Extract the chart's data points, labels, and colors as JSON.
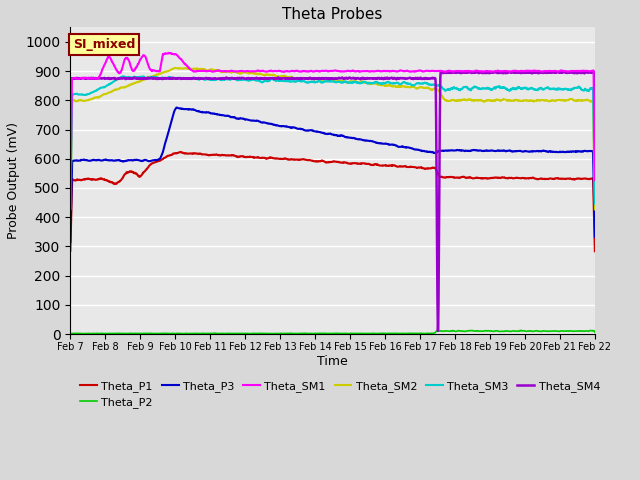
{
  "title": "Theta Probes",
  "ylabel": "Probe Output (mV)",
  "xlabel": "Time",
  "ylim": [
    0,
    1050
  ],
  "xlim": [
    0,
    15
  ],
  "fig_bg": "#d8d8d8",
  "plot_bg": "#e8e8e8",
  "annotation_text": "SI_mixed",
  "annotation_bg": "#ffff99",
  "annotation_border": "#8b0000",
  "x_tick_labels": [
    "Feb 7",
    "Feb 8",
    "Feb 9",
    "Feb 10",
    "Feb 11",
    "Feb 12",
    "Feb 13",
    "Feb 14",
    "Feb 15",
    "Feb 16",
    "Feb 17",
    "Feb 18",
    "Feb 19",
    "Feb 20",
    "Feb 21",
    "Feb 22"
  ],
  "line_colors": {
    "Theta_P1": "#cc0000",
    "Theta_P2": "#00cc00",
    "Theta_P3": "#0000cc",
    "Theta_SM1": "#ff00ff",
    "Theta_SM2": "#cccc00",
    "Theta_SM3": "#00cccc",
    "Theta_SM4": "#9900cc"
  },
  "yticks": [
    0,
    100,
    200,
    300,
    400,
    500,
    600,
    700,
    800,
    900,
    1000
  ]
}
